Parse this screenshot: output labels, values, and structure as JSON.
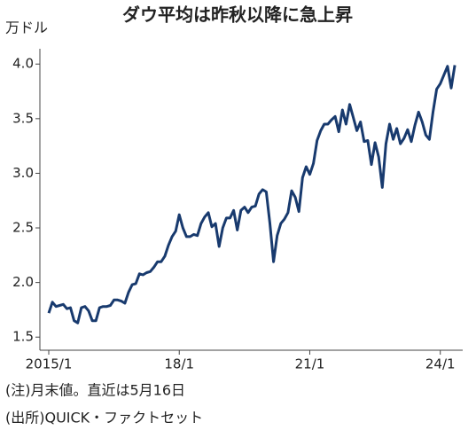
{
  "chart_data": {
    "type": "line",
    "title": "ダウ平均は昨秋以降に急上昇",
    "y_label": "万ドル",
    "categories": [
      "2015/1",
      null,
      null,
      null,
      null,
      null,
      null,
      null,
      null,
      null,
      null,
      null,
      null,
      null,
      null,
      null,
      null,
      null,
      null,
      null,
      null,
      null,
      null,
      null,
      null,
      null,
      null,
      null,
      null,
      null,
      null,
      null,
      null,
      null,
      null,
      null,
      "18/1",
      null,
      null,
      null,
      null,
      null,
      null,
      null,
      null,
      null,
      null,
      null,
      null,
      null,
      null,
      null,
      null,
      null,
      null,
      null,
      null,
      null,
      null,
      null,
      null,
      null,
      null,
      null,
      null,
      null,
      null,
      null,
      null,
      null,
      null,
      null,
      "21/1",
      null,
      null,
      null,
      null,
      null,
      null,
      null,
      null,
      null,
      null,
      null,
      null,
      null,
      null,
      null,
      null,
      null,
      null,
      null,
      null,
      null,
      null,
      null,
      null,
      null,
      null,
      null,
      null,
      null,
      null,
      null,
      null,
      null,
      null,
      null,
      "24/1",
      null,
      null,
      null,
      null
    ],
    "values": [
      1.72,
      1.82,
      1.78,
      1.79,
      1.8,
      1.76,
      1.77,
      1.65,
      1.63,
      1.77,
      1.78,
      1.74,
      1.65,
      1.65,
      1.77,
      1.78,
      1.78,
      1.79,
      1.84,
      1.84,
      1.83,
      1.81,
      1.91,
      1.98,
      1.99,
      2.08,
      2.07,
      2.09,
      2.1,
      2.14,
      2.19,
      2.19,
      2.24,
      2.34,
      2.42,
      2.47,
      2.62,
      2.5,
      2.42,
      2.42,
      2.44,
      2.43,
      2.54,
      2.6,
      2.64,
      2.51,
      2.54,
      2.33,
      2.5,
      2.59,
      2.59,
      2.66,
      2.48,
      2.66,
      2.69,
      2.64,
      2.69,
      2.7,
      2.81,
      2.85,
      2.83,
      2.54,
      2.19,
      2.43,
      2.54,
      2.58,
      2.64,
      2.84,
      2.78,
      2.65,
      2.96,
      3.06,
      2.99,
      3.09,
      3.3,
      3.39,
      3.45,
      3.45,
      3.49,
      3.52,
      3.38,
      3.58,
      3.45,
      3.63,
      3.51,
      3.39,
      3.47,
      3.29,
      3.3,
      3.08,
      3.28,
      3.15,
      2.87,
      3.27,
      3.45,
      3.31,
      3.41,
      3.27,
      3.32,
      3.4,
      3.29,
      3.44,
      3.56,
      3.47,
      3.35,
      3.31,
      3.56,
      3.77,
      3.82,
      3.9,
      3.98,
      3.78,
      3.99
    ],
    "color": "#183a6e",
    "ylim": [
      1.38,
      4.14
    ],
    "yticks": [
      1.5,
      {
        "value": 2,
        "label": "2.0"
      },
      2.5,
      {
        "value": 3,
        "label": "3.0"
      },
      3.5,
      {
        "value": 4,
        "label": "4.0"
      }
    ],
    "grid": false,
    "notes": [
      "(注)月末値。直近は5月16日",
      "(出所)QUICK・ファクトセット"
    ]
  }
}
